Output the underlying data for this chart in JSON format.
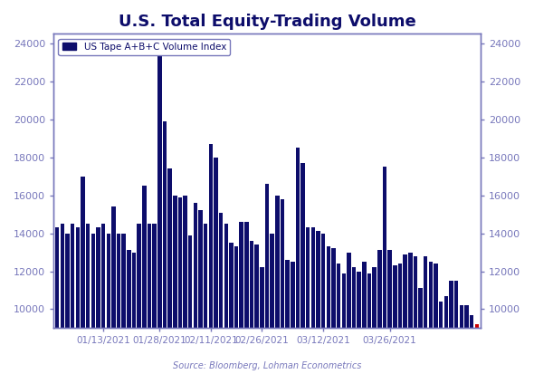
{
  "title": "U.S. Total Equity-Trading Volume",
  "legend_label": "US Tape A+B+C Volume Index",
  "source": "Source: Bloomberg, Lohman Econometrics",
  "bar_color": "#0d0d6b",
  "last_bar_color": "#cc0000",
  "ylim": [
    9000,
    24500
  ],
  "yticks": [
    10000,
    12000,
    14000,
    16000,
    18000,
    20000,
    22000,
    24000
  ],
  "title_color": "#0d0d6b",
  "axis_color": "#7777bb",
  "tick_color": "#7777bb",
  "background_color": "#ffffff",
  "values": [
    14300,
    14500,
    14000,
    14500,
    14300,
    17000,
    14500,
    14000,
    14300,
    14500,
    14000,
    15400,
    14000,
    14000,
    13100,
    13000,
    14500,
    16500,
    14500,
    14500,
    24200,
    19900,
    17400,
    16000,
    15900,
    16000,
    13900,
    15600,
    15200,
    14500,
    18700,
    18000,
    15100,
    14500,
    13500,
    13300,
    14600,
    14600,
    13600,
    13400,
    12200,
    16600,
    14000,
    16000,
    15800,
    12600,
    12500,
    18500,
    17700,
    14300,
    14300,
    14100,
    14000,
    13300,
    13200,
    12400,
    11900,
    13000,
    12200,
    12000,
    12500,
    11900,
    12200,
    13100,
    17500,
    13100,
    12300,
    12400,
    12900,
    13000,
    12800,
    11100,
    12800,
    12500,
    12400,
    10400,
    10700,
    11500,
    11500,
    10200,
    10200,
    9700,
    9200
  ],
  "xtick_labels": [
    "01/13/2021",
    "01/28/2021",
    "02/11/2021",
    "02/26/2021",
    "03/12/2021",
    "03/26/2021"
  ],
  "xtick_indices": [
    9,
    20,
    30,
    40,
    52,
    65
  ]
}
